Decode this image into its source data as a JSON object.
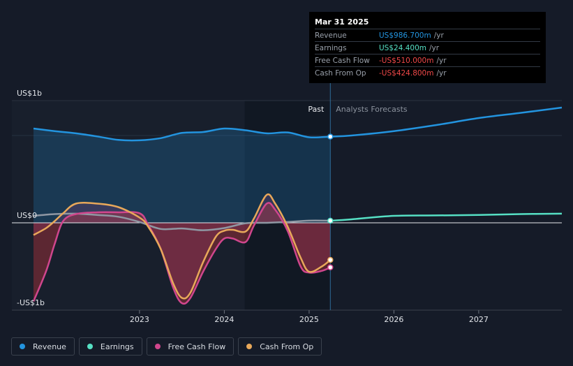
{
  "tooltip": {
    "date": "Mar 31 2025",
    "rows": [
      {
        "label": "Revenue",
        "value": "US$986.700m",
        "unit": "/yr",
        "color": "#2394df"
      },
      {
        "label": "Earnings",
        "value": "US$24.400m",
        "unit": "/yr",
        "color": "#56e0c4"
      },
      {
        "label": "Free Cash Flow",
        "value": "-US$510.000m",
        "unit": "/yr",
        "color": "#f04848"
      },
      {
        "label": "Cash From Op",
        "value": "-US$424.800m",
        "unit": "/yr",
        "color": "#f04848"
      }
    ]
  },
  "chart_data": {
    "type": "line",
    "y_tick_labels": [
      "US$1b",
      "US$0",
      "-US$1b"
    ],
    "y_ticks": [
      1000,
      0,
      -1000
    ],
    "ylim": [
      -1000,
      1400
    ],
    "x_tick_labels": [
      "2023",
      "2024",
      "2025",
      "2026",
      "2027"
    ],
    "x_ticks": [
      2023,
      2024,
      2025,
      2026,
      2027
    ],
    "xlim": [
      2021.75,
      2027.98
    ],
    "past_start": 2021.75,
    "forecast_start": 2025.25,
    "dark_band": [
      2024.24,
      2025.25
    ],
    "past_label": "Past",
    "forecast_label": "Analysts Forecasts",
    "series": [
      {
        "name": "Revenue",
        "color": "#2394df",
        "x": [
          2021.75,
          2022.0,
          2022.25,
          2022.5,
          2022.75,
          2023.0,
          2023.25,
          2023.5,
          2023.75,
          2024.0,
          2024.25,
          2024.5,
          2024.75,
          2025.0,
          2025.25,
          2025.5,
          2026.0,
          2026.5,
          2027.0,
          2027.5,
          2027.98
        ],
        "y": [
          1080,
          1050,
          1025,
          990,
          950,
          945,
          970,
          1030,
          1040,
          1080,
          1060,
          1025,
          1035,
          980,
          987,
          1000,
          1050,
          1120,
          1200,
          1260,
          1320
        ]
      },
      {
        "name": "Earnings",
        "color": "#56e0c4",
        "x": [
          2021.75,
          2022.0,
          2022.25,
          2022.5,
          2022.75,
          2023.0,
          2023.25,
          2023.5,
          2023.75,
          2024.0,
          2024.25,
          2024.5,
          2024.75,
          2025.0,
          2025.25,
          2025.5,
          2026.0,
          2026.5,
          2027.0,
          2027.5,
          2027.98
        ],
        "y": [
          80,
          100,
          105,
          90,
          70,
          10,
          -70,
          -65,
          -85,
          -60,
          -5,
          0,
          10,
          25,
          24,
          40,
          80,
          85,
          90,
          100,
          105
        ]
      },
      {
        "name": "Free Cash Flow",
        "color": "#d0468d",
        "x": [
          2021.75,
          2021.9,
          2022.0,
          2022.1,
          2022.25,
          2022.5,
          2022.75,
          2023.0,
          2023.1,
          2023.25,
          2023.4,
          2023.5,
          2023.6,
          2023.75,
          2023.9,
          2024.0,
          2024.1,
          2024.25,
          2024.35,
          2024.5,
          2024.6,
          2024.75,
          2024.9,
          2025.0,
          2025.15,
          2025.25
        ],
        "y": [
          -900,
          -550,
          -240,
          20,
          100,
          120,
          120,
          110,
          -20,
          -300,
          -750,
          -920,
          -860,
          -560,
          -300,
          -180,
          -180,
          -220,
          -30,
          220,
          150,
          -100,
          -500,
          -570,
          -550,
          -510
        ]
      },
      {
        "name": "Cash From Op",
        "color": "#e8a85a",
        "x": [
          2021.75,
          2021.9,
          2022.0,
          2022.1,
          2022.25,
          2022.5,
          2022.75,
          2023.0,
          2023.1,
          2023.25,
          2023.4,
          2023.5,
          2023.6,
          2023.75,
          2023.9,
          2024.0,
          2024.1,
          2024.25,
          2024.35,
          2024.5,
          2024.6,
          2024.75,
          2024.9,
          2025.0,
          2025.15,
          2025.25
        ],
        "y": [
          -140,
          -60,
          20,
          110,
          220,
          220,
          180,
          60,
          -40,
          -300,
          -700,
          -860,
          -800,
          -450,
          -160,
          -90,
          -80,
          -100,
          50,
          320,
          220,
          -50,
          -400,
          -560,
          -500,
          -425
        ]
      }
    ]
  },
  "legend": [
    {
      "label": "Revenue",
      "color": "#2394df"
    },
    {
      "label": "Earnings",
      "color": "#56e0c4"
    },
    {
      "label": "Free Cash Flow",
      "color": "#d0468d"
    },
    {
      "label": "Cash From Op",
      "color": "#e8a85a"
    }
  ]
}
